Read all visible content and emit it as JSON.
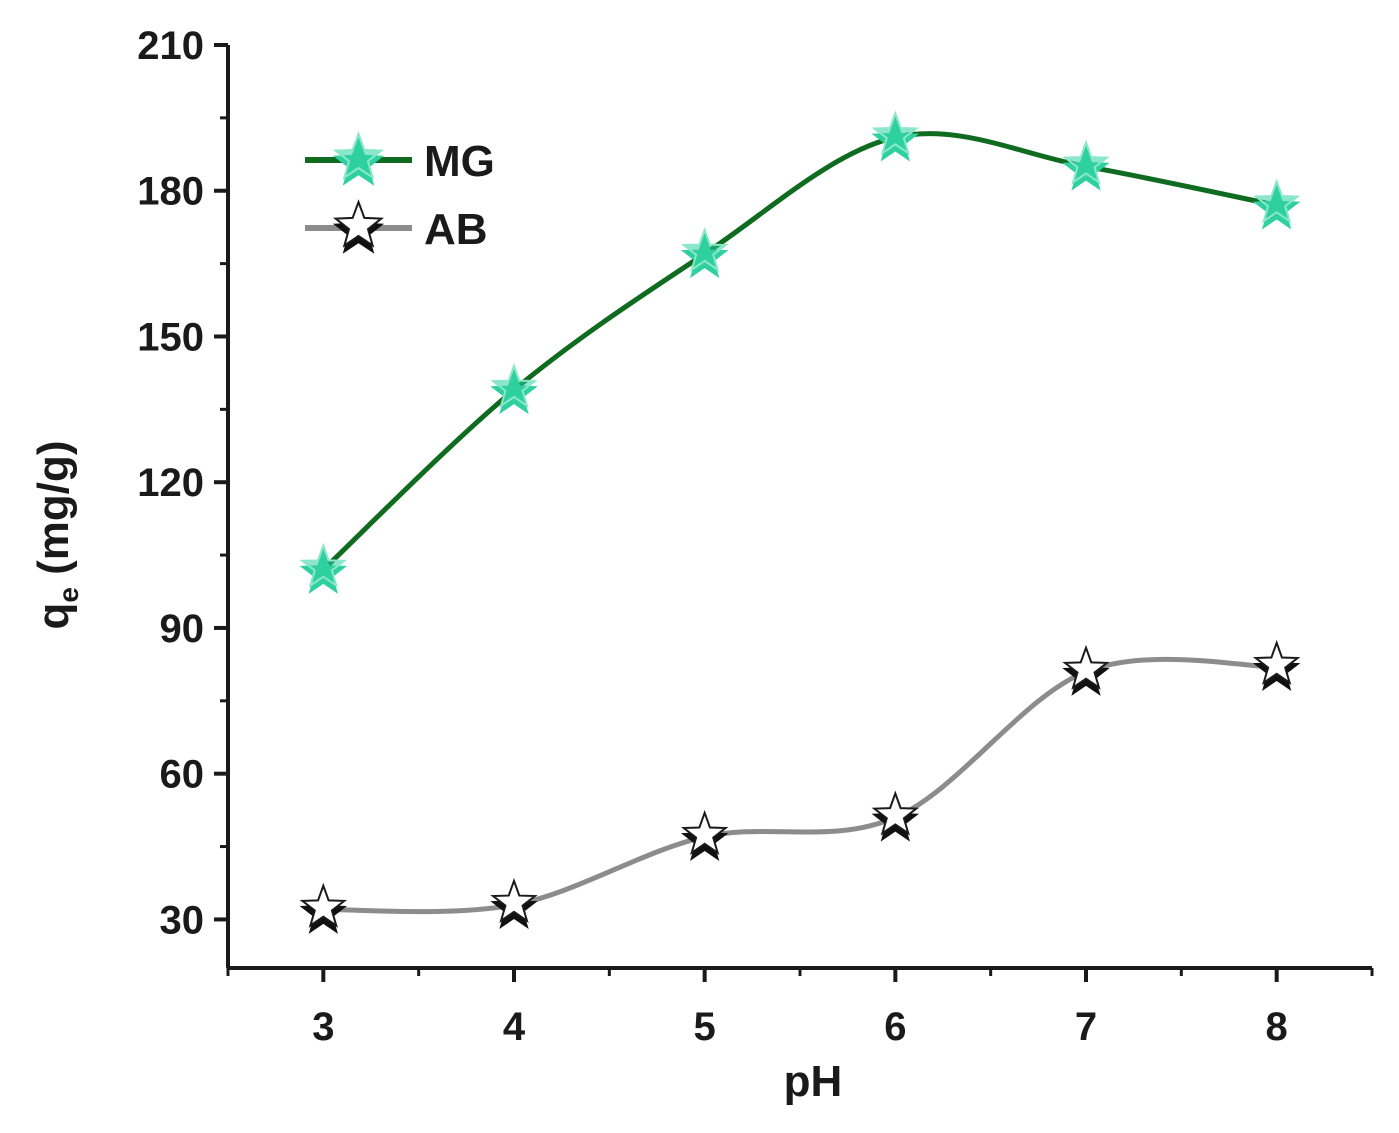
{
  "chart_data": {
    "type": "line",
    "title": "",
    "xlabel": "pH",
    "ylabel_main": "q",
    "ylabel_sub": "e",
    "ylabel_unit": " (mg/g)",
    "x": [
      3,
      4,
      5,
      6,
      7,
      8
    ],
    "xlim": [
      2.5,
      8.5
    ],
    "ylim": [
      20,
      210
    ],
    "xticks": [
      3,
      4,
      5,
      6,
      7,
      8
    ],
    "yticks": [
      30,
      60,
      90,
      120,
      150,
      180,
      210
    ],
    "grid": false,
    "legend_position": "top-left",
    "series": [
      {
        "name": "MG",
        "values": [
          102,
          139,
          167,
          191,
          185,
          177
        ],
        "line_color": "#0f6b1f",
        "marker_fill": "#2fd0a0",
        "marker": "star"
      },
      {
        "name": "AB",
        "values": [
          32,
          33,
          47,
          51,
          81,
          82
        ],
        "line_color": "#8c8c8c",
        "marker_fill": "#111111",
        "marker": "star"
      }
    ]
  }
}
